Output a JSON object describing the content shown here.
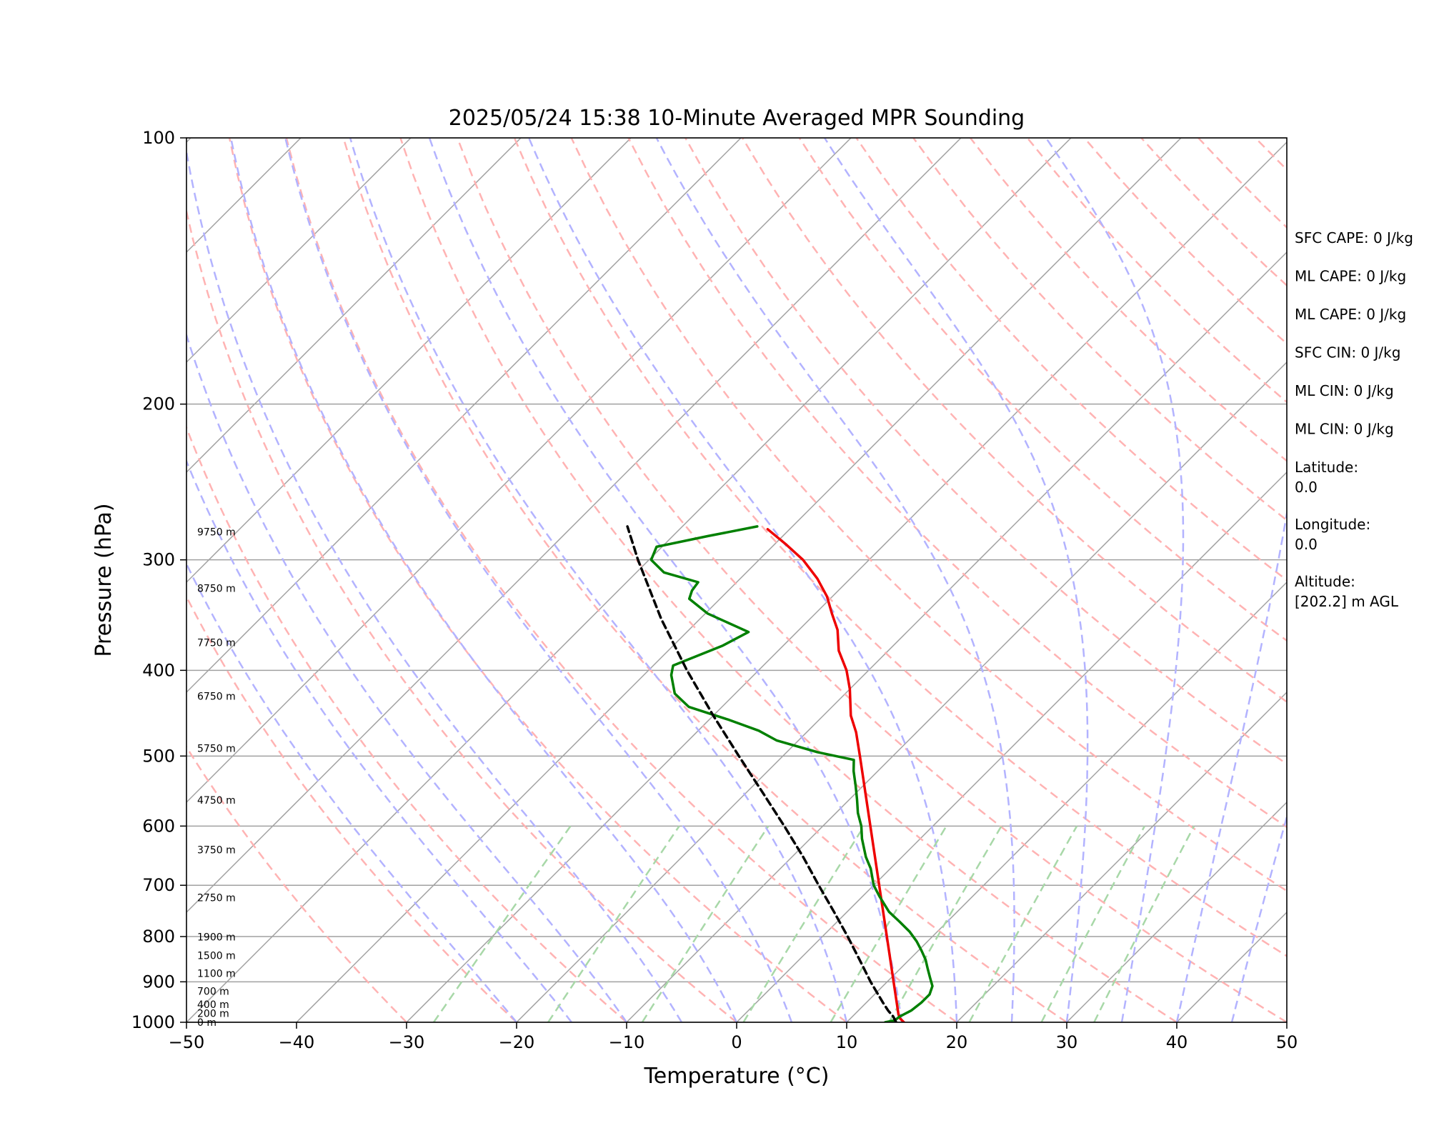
{
  "chart_data": {
    "type": "skew-t",
    "title": "2025/05/24 15:38 10-Minute Averaged MPR Sounding",
    "xlabel": "Temperature (°C)",
    "ylabel": "Pressure (hPa)",
    "xlim": [
      -50,
      50
    ],
    "ylim": [
      1000,
      100
    ],
    "y_scale": "log",
    "x_ticks": [
      "−50",
      "−40",
      "−30",
      "−20",
      "−10",
      "0",
      "10",
      "20",
      "30",
      "40",
      "50"
    ],
    "y_ticks": [
      {
        "value": 100,
        "label": "100"
      },
      {
        "value": 200,
        "label": "200"
      },
      {
        "value": 300,
        "label": "300"
      },
      {
        "value": 400,
        "label": "400"
      },
      {
        "value": 500,
        "label": "500"
      },
      {
        "value": 600,
        "label": "600"
      },
      {
        "value": 700,
        "label": "700"
      },
      {
        "value": 800,
        "label": "800"
      },
      {
        "value": 900,
        "label": "900"
      },
      {
        "value": 1000,
        "label": "1000"
      }
    ],
    "height_labels": [
      {
        "p": 1000,
        "label": "0 m"
      },
      {
        "p": 977,
        "label": "200 m"
      },
      {
        "p": 955,
        "label": "400 m"
      },
      {
        "p": 922,
        "label": "700 m"
      },
      {
        "p": 880,
        "label": "1100 m"
      },
      {
        "p": 840,
        "label": "1500 m"
      },
      {
        "p": 801,
        "label": "1900 m"
      },
      {
        "p": 723,
        "label": "2750 m"
      },
      {
        "p": 638,
        "label": "3750 m"
      },
      {
        "p": 561,
        "label": "4750 m"
      },
      {
        "p": 490,
        "label": "5750 m"
      },
      {
        "p": 428,
        "label": "6750 m"
      },
      {
        "p": 372,
        "label": "7750 m"
      },
      {
        "p": 323,
        "label": "8750 m"
      },
      {
        "p": 279,
        "label": "9750 m"
      }
    ],
    "series": [
      {
        "name": "temperature",
        "color": "#ee0000",
        "points": [
          {
            "p": 1000,
            "t": 15.2
          },
          {
            "p": 990,
            "t": 14.5
          },
          {
            "p": 980,
            "t": 14.0
          },
          {
            "p": 500,
            "t": -13.0
          },
          {
            "p": 470,
            "t": -15.5
          },
          {
            "p": 450,
            "t": -17.5
          },
          {
            "p": 420,
            "t": -20.0
          },
          {
            "p": 400,
            "t": -22.0
          },
          {
            "p": 380,
            "t": -24.5
          },
          {
            "p": 360,
            "t": -26.5
          },
          {
            "p": 345,
            "t": -28.5
          },
          {
            "p": 330,
            "t": -30.5
          },
          {
            "p": 315,
            "t": -33.0
          },
          {
            "p": 300,
            "t": -36.0
          },
          {
            "p": 288,
            "t": -39.0
          },
          {
            "p": 277,
            "t": -42.0
          }
        ]
      },
      {
        "name": "dewpoint",
        "color": "#008000",
        "points": [
          {
            "p": 1000,
            "t": 13.5
          },
          {
            "p": 995,
            "t": 14.2
          },
          {
            "p": 985,
            "t": 14.3
          },
          {
            "p": 970,
            "t": 14.8
          },
          {
            "p": 950,
            "t": 15.0
          },
          {
            "p": 930,
            "t": 15.0
          },
          {
            "p": 910,
            "t": 14.5
          },
          {
            "p": 890,
            "t": 13.5
          },
          {
            "p": 870,
            "t": 12.5
          },
          {
            "p": 850,
            "t": 11.5
          },
          {
            "p": 830,
            "t": 10.3
          },
          {
            "p": 810,
            "t": 9.0
          },
          {
            "p": 790,
            "t": 7.5
          },
          {
            "p": 770,
            "t": 5.7
          },
          {
            "p": 750,
            "t": 3.8
          },
          {
            "p": 720,
            "t": 1.5
          },
          {
            "p": 700,
            "t": 0.0
          },
          {
            "p": 670,
            "t": -1.8
          },
          {
            "p": 650,
            "t": -3.3
          },
          {
            "p": 620,
            "t": -5.3
          },
          {
            "p": 600,
            "t": -6.5
          },
          {
            "p": 580,
            "t": -8.0
          },
          {
            "p": 560,
            "t": -9.3
          },
          {
            "p": 540,
            "t": -10.7
          },
          {
            "p": 520,
            "t": -12.2
          },
          {
            "p": 505,
            "t": -13.2
          },
          {
            "p": 495,
            "t": -17.2
          },
          {
            "p": 480,
            "t": -22.0
          },
          {
            "p": 468,
            "t": -24.5
          },
          {
            "p": 455,
            "t": -28.2
          },
          {
            "p": 440,
            "t": -33.0
          },
          {
            "p": 425,
            "t": -35.5
          },
          {
            "p": 405,
            "t": -37.5
          },
          {
            "p": 395,
            "t": -38.2
          },
          {
            "p": 375,
            "t": -35.5
          },
          {
            "p": 362,
            "t": -34.4
          },
          {
            "p": 345,
            "t": -39.8
          },
          {
            "p": 332,
            "t": -42.8
          },
          {
            "p": 325,
            "t": -43.3
          },
          {
            "p": 318,
            "t": -43.5
          },
          {
            "p": 310,
            "t": -47.5
          },
          {
            "p": 300,
            "t": -49.8
          },
          {
            "p": 290,
            "t": -50.5
          },
          {
            "p": 282,
            "t": -46.8
          },
          {
            "p": 275,
            "t": -43.2
          }
        ]
      },
      {
        "name": "parcel",
        "color": "#000000",
        "dashed": true,
        "points": [
          {
            "p": 1000,
            "t": 14.5
          },
          {
            "p": 985,
            "t": 13.7
          },
          {
            "p": 970,
            "t": 12.7
          },
          {
            "p": 950,
            "t": 11.5
          },
          {
            "p": 900,
            "t": 8.5
          },
          {
            "p": 850,
            "t": 5.5
          },
          {
            "p": 800,
            "t": 2.3
          },
          {
            "p": 750,
            "t": -1.2
          },
          {
            "p": 700,
            "t": -5.0
          },
          {
            "p": 650,
            "t": -9.0
          },
          {
            "p": 600,
            "t": -13.5
          },
          {
            "p": 550,
            "t": -18.5
          },
          {
            "p": 500,
            "t": -24.0
          },
          {
            "p": 450,
            "t": -30.0
          },
          {
            "p": 400,
            "t": -36.5
          },
          {
            "p": 350,
            "t": -43.5
          },
          {
            "p": 300,
            "t": -51.0
          },
          {
            "p": 275,
            "t": -55.0
          }
        ]
      }
    ]
  },
  "stats": [
    {
      "label": "SFC CAPE: 0 J/kg"
    },
    {
      "label": "ML CAPE: 0 J/kg"
    },
    {
      "label": "ML CAPE: 0 J/kg"
    },
    {
      "label": "SFC CIN: 0 J/kg"
    },
    {
      "label": "ML CIN: 0 J/kg"
    },
    {
      "label": "ML CIN: 0 J/kg"
    },
    {
      "label": "Latitude:",
      "value": "0.0"
    },
    {
      "label": "Longitude:",
      "value": "0.0"
    },
    {
      "label": "Altitude:",
      "value": "[202.2] m AGL"
    }
  ],
  "colors": {
    "isotherm": "#a0a0a0",
    "dry_adiabat": "#ffb3b3",
    "moist_adiabat": "#b3b3ff",
    "mixing_ratio": "#a8d8a8"
  }
}
